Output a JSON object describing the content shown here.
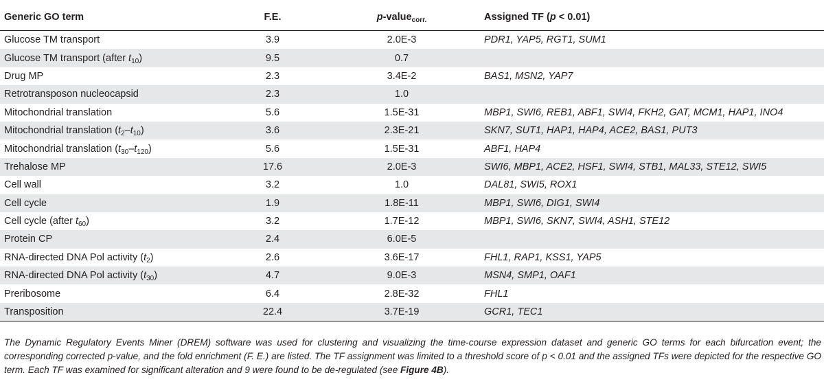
{
  "header": {
    "term": "Generic GO term",
    "fe": "F.E.",
    "pval_main": "p",
    "pval_rest": "-value",
    "pval_sub": "corr.",
    "tf_pre": "Assigned TF (",
    "tf_p": "p",
    "tf_post": " < 0.01)"
  },
  "rows": [
    {
      "term": "Glucose TM transport",
      "fe": "3.9",
      "p": "2.0E-3",
      "tf": "PDR1, YAP5, RGT1, SUM1"
    },
    {
      "term": "Glucose TM transport (after ",
      "t": "t",
      "sub": "10",
      "term_end": ")",
      "fe": "9.5",
      "p": "0.7",
      "tf": ""
    },
    {
      "term": "Drug MP",
      "fe": "2.3",
      "p": "3.4E-2",
      "tf": "BAS1, MSN2, YAP7"
    },
    {
      "term": "Retrotransposon nucleocapsid",
      "fe": "2.3",
      "p": "1.0",
      "tf": ""
    },
    {
      "term": "Mitochondrial translation",
      "fe": "5.6",
      "p": "1.5E-31",
      "tf": "MBP1, SWI6, REB1, ABF1, SWI4, FKH2, GAT, MCM1, HAP1, INO4"
    },
    {
      "term": "Mitochondrial translation (",
      "t": "t",
      "sub": "2",
      "mid": "–",
      "t2": "t",
      "sub2": "10",
      "term_end": ")",
      "fe": "3.6",
      "p": "2.3E-21",
      "tf": "SKN7, SUT1, HAP1, HAP4, ACE2, BAS1, PUT3"
    },
    {
      "term": "Mitochondrial translation (",
      "t": "t",
      "sub": "30",
      "mid": "–",
      "t2": "t",
      "sub2": "120",
      "term_end": ")",
      "fe": "5.6",
      "p": "1.5E-31",
      "tf": "ABF1, HAP4"
    },
    {
      "term": "Trehalose MP",
      "fe": "17.6",
      "p": "2.0E-3",
      "tf": "SWI6, MBP1, ACE2, HSF1, SWI4, STB1, MAL33, STE12, SWI5"
    },
    {
      "term": "Cell wall",
      "fe": "3.2",
      "p": "1.0",
      "tf": "DAL81, SWI5, ROX1"
    },
    {
      "term": "Cell cycle",
      "fe": "1.9",
      "p": "1.8E-11",
      "tf": "MBP1, SWI6, DIG1, SWI4"
    },
    {
      "term": "Cell cycle (after ",
      "t": "t",
      "sub": "60",
      "term_end": ")",
      "fe": "3.2",
      "p": "1.7E-12",
      "tf": "MBP1, SWI6, SKN7, SWI4, ASH1, STE12"
    },
    {
      "term": "Protein CP",
      "fe": "2.4",
      "p": "6.0E-5",
      "tf": ""
    },
    {
      "term": "RNA-directed DNA Pol activity (",
      "t": "t",
      "sub": "2",
      "term_end": ")",
      "fe": "2.6",
      "p": "3.6E-17",
      "tf": "FHL1, RAP1, KSS1, YAP5"
    },
    {
      "term": "RNA-directed DNA Pol activity (",
      "t": "t",
      "sub": "30",
      "term_end": ")",
      "fe": "4.7",
      "p": "9.0E-3",
      "tf": "MSN4, SMP1, OAF1"
    },
    {
      "term": "Preribosome",
      "fe": "6.4",
      "p": "2.8E-32",
      "tf": "FHL1"
    },
    {
      "term": "Transposition",
      "fe": "22.4",
      "p": "3.7E-19",
      "tf": "GCR1, TEC1"
    }
  ],
  "caption": {
    "text": "The Dynamic Regulatory Events Miner (DREM) software was used for clustering and visualizing the time-course expression dataset and generic GO terms for each bifurcation event; the corresponding corrected p-value, and the fold enrichment (F. E.) are listed. The TF assignment was limited to a threshold score of p < 0.01 and the assigned TFs were depicted for the respective GO term. Each TF was examined for significant alteration and 9 were found to be de-regulated (see ",
    "figref": "Figure 4B",
    "end": ")."
  }
}
